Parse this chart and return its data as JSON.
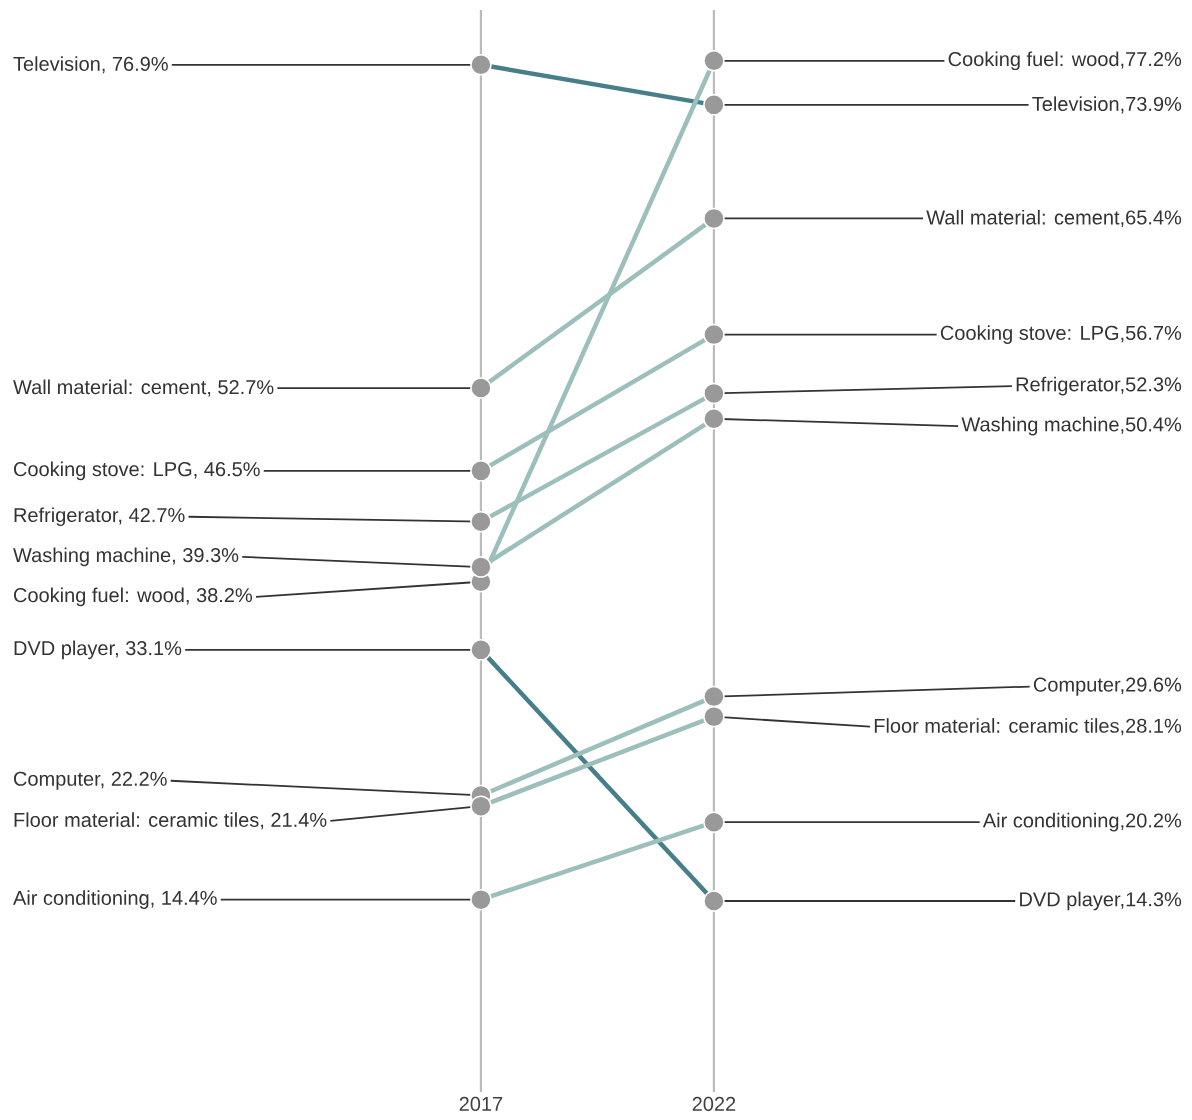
{
  "chart_data": {
    "type": "line",
    "categories": [
      "2017",
      "2022"
    ],
    "ylim": [
      0,
      81
    ],
    "grid": "x",
    "tick_labels": "x",
    "marker": "circle",
    "series": [
      {
        "color": "#467f89",
        "values": [
          76.9,
          73.9
        ],
        "value_labels": [
          "Television, 76.9%",
          "Television,73.9%"
        ]
      },
      {
        "color": "#9dbfbc",
        "values": [
          38.2,
          77.2
        ],
        "value_labels": [
          "Cooking fuel: wood, 38.2%",
          "Cooking fuel: wood,77.2%"
        ]
      },
      {
        "color": "#9dbfbc",
        "values": [
          52.7,
          65.4
        ],
        "value_labels": [
          "Wall material: cement, 52.7%",
          "Wall material: cement,65.4%"
        ]
      },
      {
        "color": "#9dbfbc",
        "values": [
          46.5,
          56.7
        ],
        "value_labels": [
          "Cooking stove: LPG, 46.5%",
          "Cooking stove: LPG,56.7%"
        ]
      },
      {
        "color": "#9dbfbc",
        "values": [
          42.7,
          52.3
        ],
        "value_labels": [
          "Refrigerator, 42.7%",
          "Refrigerator,52.3%"
        ]
      },
      {
        "color": "#9dbfbc",
        "values": [
          39.3,
          50.4
        ],
        "value_labels": [
          "Washing machine, 39.3%",
          "Washing machine,50.4%"
        ]
      },
      {
        "color": "#467f89",
        "values": [
          33.1,
          14.3
        ],
        "value_labels": [
          "DVD player, 33.1%",
          "DVD player,14.3%"
        ]
      },
      {
        "color": "#9dbfbc",
        "values": [
          22.2,
          29.6
        ],
        "value_labels": [
          "Computer, 22.2%",
          "Computer,29.6%"
        ]
      },
      {
        "color": "#9dbfbc",
        "values": [
          21.4,
          28.1
        ],
        "value_labels": [
          "Floor material: ceramic tiles, 21.4%",
          "Floor material: ceramic tiles,28.1%"
        ]
      },
      {
        "color": "#9dbfbc",
        "values": [
          14.4,
          20.2
        ],
        "value_labels": [
          "Air conditioning, 14.4%",
          "Air conditioning,20.2%"
        ]
      }
    ]
  }
}
